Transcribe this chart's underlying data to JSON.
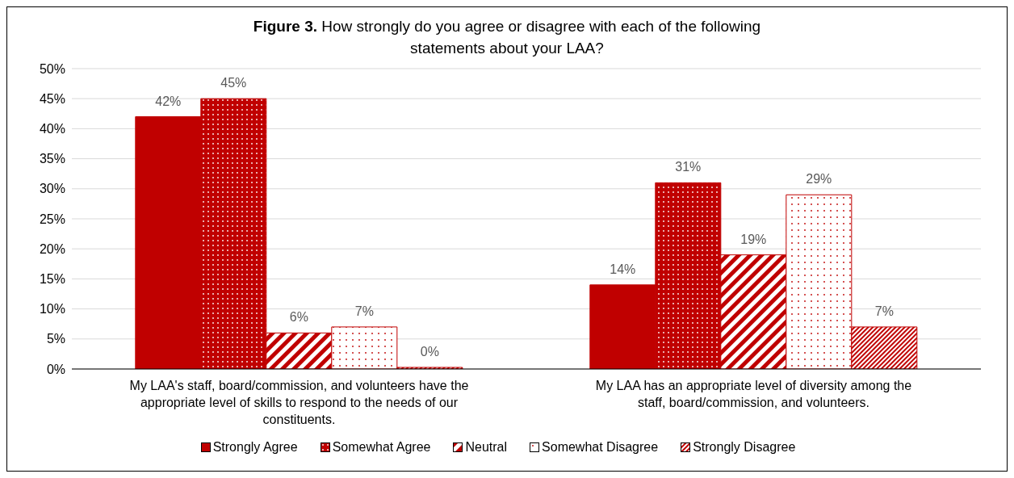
{
  "chart_data": {
    "type": "bar",
    "title": "Figure 3. How strongly do you agree or disagree with each of the following statements about your LAA?",
    "categories": [
      "My LAA's staff, board/commission, and volunteers have the appropriate level of skills to respond to the needs of our constituents.",
      "My LAA has an appropriate level of diversity among the staff, board/commission, and volunteers."
    ],
    "series": [
      {
        "name": "Strongly Agree",
        "color": "#c00000",
        "values": [
          42,
          14
        ],
        "value_labels": [
          "42%",
          "14%"
        ]
      },
      {
        "name": "Somewhat Agree",
        "color": "#c00000",
        "values": [
          45,
          31
        ],
        "value_labels": [
          "45%",
          "31%"
        ]
      },
      {
        "name": "Neutral",
        "color": "#c00000",
        "values": [
          6,
          19
        ],
        "value_labels": [
          "6%",
          "19%"
        ]
      },
      {
        "name": "Somewhat Disagree",
        "color": "#c00000",
        "values": [
          7,
          29
        ],
        "value_labels": [
          "7%",
          "29%"
        ]
      },
      {
        "name": "Strongly Disagree",
        "color": "#c00000",
        "values": [
          0,
          7
        ],
        "value_labels": [
          "0%",
          "7%"
        ]
      }
    ],
    "ylim": [
      0,
      50
    ],
    "yticks": [
      {
        "value": 0,
        "label": "0%"
      },
      {
        "value": 5,
        "label": "5%"
      },
      {
        "value": 10,
        "label": "10%"
      },
      {
        "value": 15,
        "label": "15%"
      },
      {
        "value": 20,
        "label": "20%"
      },
      {
        "value": 25,
        "label": "25%"
      },
      {
        "value": 30,
        "label": "30%"
      },
      {
        "value": 35,
        "label": "35%"
      },
      {
        "value": 40,
        "label": "40%"
      },
      {
        "value": 45,
        "label": "45%"
      },
      {
        "value": 50,
        "label": "50%"
      }
    ],
    "grid": "y",
    "legend": "bottom"
  }
}
